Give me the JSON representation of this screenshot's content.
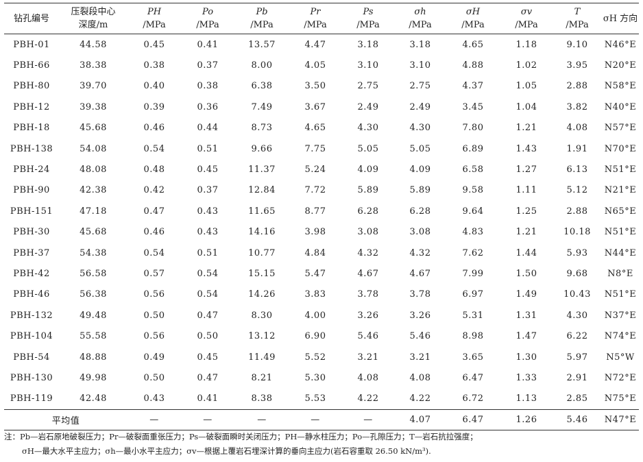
{
  "table": {
    "columns": [
      {
        "id": "hole",
        "label": "钻孔编号",
        "unit": ""
      },
      {
        "id": "depth",
        "label": "压裂段中心",
        "unit": "深度/m"
      },
      {
        "id": "PH",
        "label": "PH",
        "unit": "/MPa"
      },
      {
        "id": "Po",
        "label": "Po",
        "unit": "/MPa"
      },
      {
        "id": "Pb",
        "label": "Pb",
        "unit": "/MPa"
      },
      {
        "id": "Pr",
        "label": "Pr",
        "unit": "/MPa"
      },
      {
        "id": "Ps",
        "label": "Ps",
        "unit": "/MPa"
      },
      {
        "id": "sh",
        "label": "σh",
        "unit": "/MPa"
      },
      {
        "id": "sH",
        "label": "σH",
        "unit": "/MPa"
      },
      {
        "id": "sv",
        "label": "σv",
        "unit": "/MPa"
      },
      {
        "id": "T",
        "label": "T",
        "unit": "/MPa"
      },
      {
        "id": "dir",
        "label": "σH 方向",
        "unit": ""
      }
    ],
    "rows": [
      [
        "PBH-01",
        "44.58",
        "0.45",
        "0.41",
        "13.57",
        "4.47",
        "3.18",
        "3.18",
        "4.65",
        "1.18",
        "9.10",
        "N46°E"
      ],
      [
        "PBH-66",
        "38.38",
        "0.38",
        "0.37",
        "8.00",
        "4.05",
        "3.10",
        "3.10",
        "4.88",
        "1.02",
        "3.95",
        "N20°E"
      ],
      [
        "PBH-80",
        "39.70",
        "0.40",
        "0.38",
        "6.38",
        "3.50",
        "2.75",
        "2.75",
        "4.37",
        "1.05",
        "2.88",
        "N58°E"
      ],
      [
        "PBH-12",
        "39.38",
        "0.39",
        "0.36",
        "7.49",
        "3.67",
        "2.49",
        "2.49",
        "3.45",
        "1.04",
        "3.82",
        "N40°E"
      ],
      [
        "PBH-18",
        "45.68",
        "0.46",
        "0.44",
        "8.73",
        "4.65",
        "4.30",
        "4.30",
        "7.80",
        "1.21",
        "4.08",
        "N57°E"
      ],
      [
        "PBH-138",
        "54.08",
        "0.54",
        "0.51",
        "9.66",
        "7.75",
        "5.05",
        "5.05",
        "6.89",
        "1.43",
        "1.91",
        "N70°E"
      ],
      [
        "PBH-24",
        "48.08",
        "0.48",
        "0.45",
        "11.37",
        "5.24",
        "4.09",
        "4.09",
        "6.58",
        "1.27",
        "6.13",
        "N51°E"
      ],
      [
        "PBH-90",
        "42.38",
        "0.42",
        "0.37",
        "12.84",
        "7.72",
        "5.89",
        "5.89",
        "9.58",
        "1.11",
        "5.12",
        "N21°E"
      ],
      [
        "PBH-151",
        "47.18",
        "0.47",
        "0.43",
        "11.65",
        "8.77",
        "6.28",
        "6.28",
        "9.64",
        "1.25",
        "2.88",
        "N65°E"
      ],
      [
        "PBH-30",
        "45.68",
        "0.46",
        "0.43",
        "14.16",
        "3.98",
        "3.08",
        "3.08",
        "4.83",
        "1.21",
        "10.18",
        "N51°E"
      ],
      [
        "PBH-37",
        "54.38",
        "0.54",
        "0.51",
        "10.77",
        "4.84",
        "4.32",
        "4.32",
        "7.62",
        "1.44",
        "5.93",
        "N44°E"
      ],
      [
        "PBH-42",
        "56.58",
        "0.57",
        "0.54",
        "15.15",
        "5.47",
        "4.67",
        "4.67",
        "7.99",
        "1.50",
        "9.68",
        "N8°E"
      ],
      [
        "PBH-46",
        "56.38",
        "0.56",
        "0.54",
        "14.26",
        "3.83",
        "3.78",
        "3.78",
        "6.97",
        "1.49",
        "10.43",
        "N51°E"
      ],
      [
        "PBH-132",
        "49.48",
        "0.50",
        "0.47",
        "8.30",
        "4.00",
        "3.26",
        "3.26",
        "5.31",
        "1.31",
        "4.30",
        "N37°E"
      ],
      [
        "PBH-104",
        "55.58",
        "0.56",
        "0.50",
        "13.12",
        "6.90",
        "5.46",
        "5.46",
        "8.98",
        "1.47",
        "6.22",
        "N74°E"
      ],
      [
        "PBH-54",
        "48.88",
        "0.49",
        "0.45",
        "11.49",
        "5.52",
        "3.21",
        "3.21",
        "3.65",
        "1.30",
        "5.97",
        "N5°W"
      ],
      [
        "PBH-130",
        "49.98",
        "0.50",
        "0.47",
        "8.21",
        "5.30",
        "4.08",
        "4.08",
        "6.47",
        "1.33",
        "2.91",
        "N72°E"
      ],
      [
        "PBH-119",
        "42.48",
        "0.43",
        "0.41",
        "8.38",
        "5.53",
        "4.22",
        "4.22",
        "6.72",
        "1.13",
        "2.85",
        "N75°E"
      ]
    ],
    "average_row": [
      "平均值",
      "—",
      "—",
      "—",
      "—",
      "—",
      "4.07",
      "6.47",
      "1.26",
      "5.46",
      "N47°E"
    ]
  },
  "note": {
    "line1": "注：Pb—岩石原地破裂压力；Pr—破裂面重张压力；Ps—破裂面瞬时关闭压力；PH—静水柱压力；Po—孔隙压力；T—岩石抗拉强度；",
    "line2": "σH—最大水平主应力；σh—最小水平主应力；σv—根据上覆岩石埋深计算的垂向主应力(岩石容重取 26.50 kN/m³)."
  }
}
